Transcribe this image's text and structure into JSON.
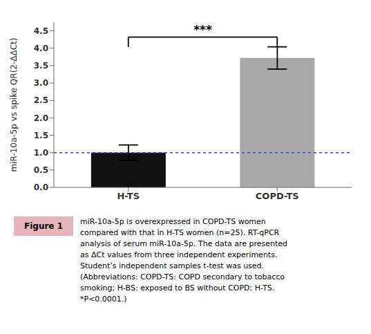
{
  "chart_data": {
    "type": "bar",
    "categories": [
      "H-TS",
      "COPD-TS"
    ],
    "values": [
      1.0,
      3.72
    ],
    "errors": [
      0.22,
      0.32
    ],
    "colors": [
      "#111111",
      "#A8A8A8"
    ],
    "ylabel": "miR-10a-5p vs spike QR(2-ΔΔCt)",
    "ylim": [
      0,
      4.75
    ],
    "yticks": [
      {
        "value": 0.0,
        "label": "0.0"
      },
      0.5,
      {
        "value": 1.0,
        "label": "1.0"
      },
      1.5,
      {
        "value": 2.0,
        "label": "2.0"
      },
      2.5,
      {
        "value": 3.0,
        "label": "3.0"
      },
      3.5,
      {
        "value": 4.0,
        "label": "4.0"
      },
      4.5
    ],
    "grid": false,
    "reference_line": {
      "y": 1.0,
      "color": "#4444DD",
      "line_style": "dashed"
    },
    "annotations": [
      {
        "type": "bracket",
        "text": "***",
        "x1": "H-TS",
        "x2": "COPD-TS",
        "y": 4.32
      }
    ],
    "caption_label": {
      "text": "Figure 1",
      "color": "#E8B4BC"
    },
    "caption_lines": [
      "miR-10a-5p is overexpressed in COPD-TS women",
      "compared with that in H-TS women (n=25). RT-qPCR",
      "analysis of serum miR-10a-5p. The data are presented",
      "as ΔCt values from three independent experiments.",
      "Student’s independent samples t-test was used.",
      "(Abbreviations: COPD-TS: COPD secondary to tobacco",
      "smoking; H-BS: exposed to BS without COPD; H-TS.",
      "*P<0.0001.)"
    ]
  }
}
